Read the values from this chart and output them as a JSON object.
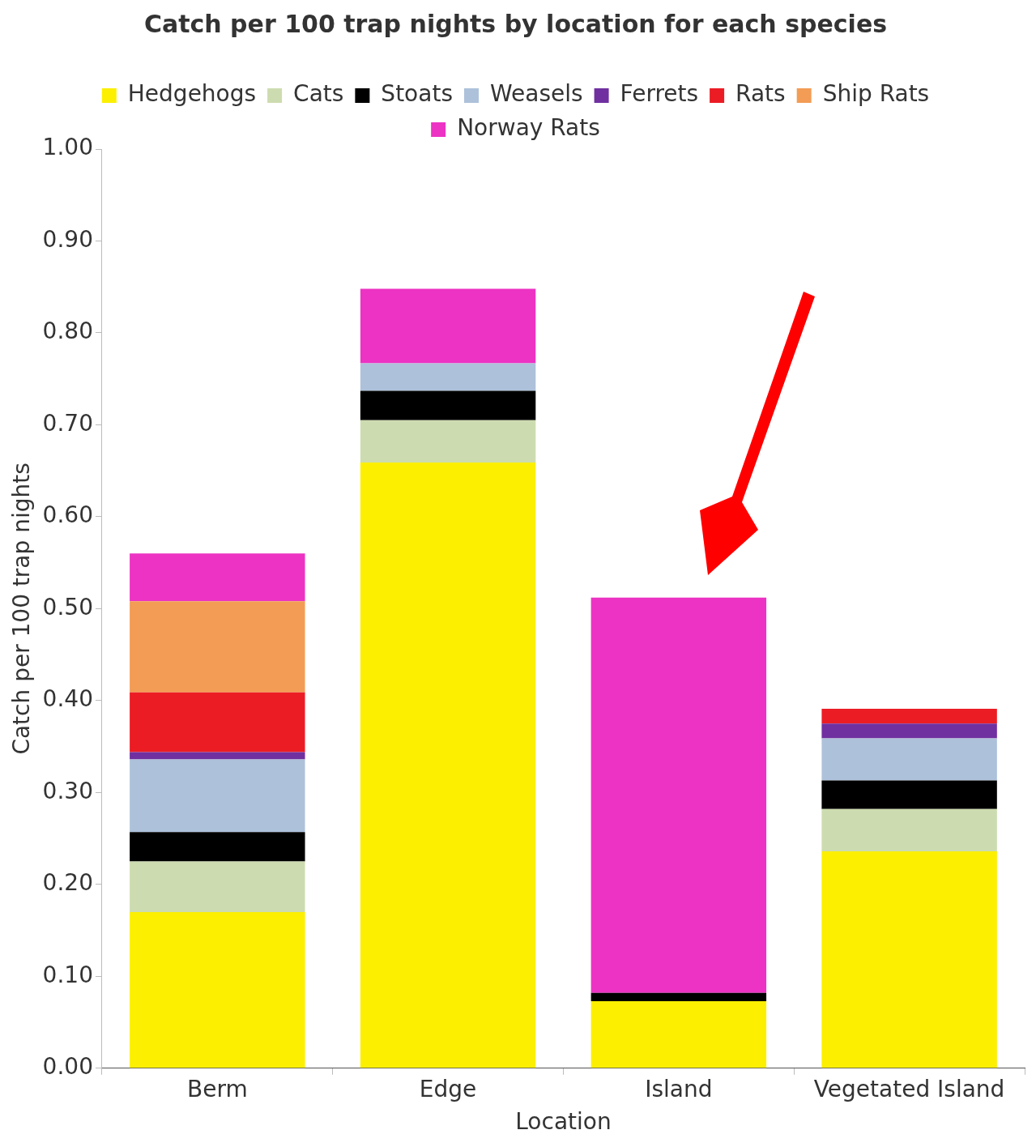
{
  "chart_data": {
    "type": "bar",
    "title": "Catch per 100 trap nights by location for each species",
    "xlabel": "Location",
    "ylabel": "Catch per 100 trap nights",
    "categories": [
      "Berm",
      "Edge",
      "Island",
      "Vegetated Island"
    ],
    "stacked": true,
    "legend": "top",
    "grid": false,
    "ylim": [
      0,
      1
    ],
    "yticks": [
      {
        "value": 0,
        "label": "0.00"
      },
      {
        "value": 0.1,
        "label": "0.10"
      },
      {
        "value": 0.2,
        "label": "0.20"
      },
      {
        "value": 0.3,
        "label": "0.30"
      },
      {
        "value": 0.4,
        "label": "0.40"
      },
      {
        "value": 0.5,
        "label": "0.50"
      },
      {
        "value": 0.6,
        "label": "0.60"
      },
      {
        "value": 0.7,
        "label": "0.70"
      },
      {
        "value": 0.8,
        "label": "0.80"
      },
      {
        "value": 0.9,
        "label": "0.90"
      },
      {
        "value": 1,
        "label": "1.00"
      }
    ],
    "series": [
      {
        "name": "Hedgehogs",
        "color": "#fcef00",
        "values": [
          0.17,
          0.659,
          0.073,
          0.236
        ]
      },
      {
        "name": "Cats",
        "color": "#cddcb0",
        "values": [
          0.055,
          0.046,
          null,
          0.046
        ]
      },
      {
        "name": "Stoats",
        "color": "#000000",
        "values": [
          0.032,
          0.032,
          0.009,
          0.031
        ]
      },
      {
        "name": "Weasels",
        "color": "#adc1da",
        "values": [
          0.079,
          0.03,
          null,
          0.046
        ]
      },
      {
        "name": "Ferrets",
        "color": "#7030a0",
        "values": [
          0.008,
          null,
          null,
          0.016
        ]
      },
      {
        "name": "Rats",
        "color": "#ec1c24",
        "values": [
          0.065,
          null,
          null,
          0.016
        ]
      },
      {
        "name": "Ship Rats",
        "color": "#f39c55",
        "values": [
          0.099,
          null,
          null,
          null
        ]
      },
      {
        "name": "Norway Rats",
        "color": "#ec33c3",
        "values": [
          0.052,
          0.081,
          0.43,
          null
        ]
      }
    ]
  }
}
